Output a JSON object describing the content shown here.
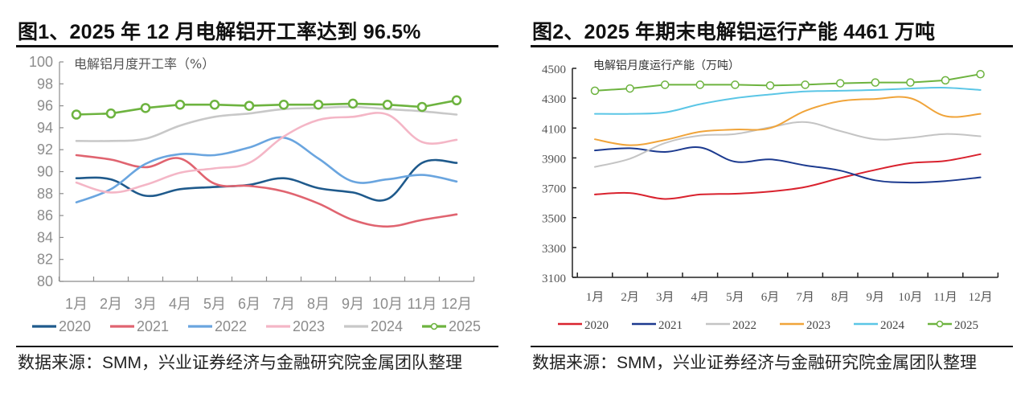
{
  "figures": [
    {
      "title": "图1、2025 年 12 月电解铝开工率达到 96.5%",
      "source": "数据来源：SMM，兴业证券经济与金融研究院金属团队整理"
    },
    {
      "title": "图2、2025 年期末电解铝运行产能 4461 万吨",
      "source": "数据来源：SMM，兴业证券经济与金融研究院金属团队整理"
    }
  ],
  "chart_data": [
    {
      "type": "line",
      "title": "电解铝月度开工率（%）",
      "xlabel": "",
      "ylabel": "",
      "categories": [
        "1月",
        "2月",
        "3月",
        "4月",
        "5月",
        "6月",
        "7月",
        "8月",
        "9月",
        "10月",
        "11月",
        "12月"
      ],
      "ylim": [
        80,
        100
      ],
      "yticks": [
        80,
        82,
        84,
        86,
        88,
        90,
        92,
        94,
        96,
        98,
        100
      ],
      "grid": false,
      "legend": "bottom",
      "series": [
        {
          "name": "2020",
          "color": "#1f5a8c",
          "markers": false,
          "values": [
            89.4,
            89.3,
            87.8,
            88.4,
            88.6,
            88.8,
            89.4,
            88.5,
            88.1,
            87.5,
            90.8,
            90.8
          ]
        },
        {
          "name": "2021",
          "color": "#e06470",
          "markers": false,
          "values": [
            91.5,
            91.1,
            90.4,
            91.2,
            88.9,
            88.7,
            88.2,
            87.1,
            85.6,
            85.0,
            85.6,
            86.1
          ]
        },
        {
          "name": "2022",
          "color": "#6aa5df",
          "markers": false,
          "values": [
            87.2,
            88.4,
            90.7,
            91.6,
            91.5,
            92.2,
            93.1,
            91.2,
            89.1,
            89.3,
            89.7,
            89.1
          ]
        },
        {
          "name": "2023",
          "color": "#f4b6c6",
          "markers": false,
          "values": [
            89.0,
            88.1,
            88.8,
            89.9,
            90.3,
            90.8,
            93.2,
            94.7,
            95.0,
            95.2,
            92.7,
            92.9
          ]
        },
        {
          "name": "2024",
          "color": "#c8c8c8",
          "markers": false,
          "values": [
            92.8,
            92.8,
            93.0,
            94.2,
            95.0,
            95.3,
            95.7,
            95.8,
            95.9,
            95.7,
            95.5,
            95.2
          ]
        },
        {
          "name": "2025",
          "color": "#6db33f",
          "markers": true,
          "values": [
            95.2,
            95.3,
            95.8,
            96.1,
            96.1,
            96.0,
            96.1,
            96.1,
            96.2,
            96.1,
            95.9,
            96.5
          ]
        }
      ]
    },
    {
      "type": "line",
      "title": "电解铝月度运行产能（万吨）",
      "xlabel": "",
      "ylabel": "",
      "categories": [
        "1月",
        "2月",
        "3月",
        "4月",
        "5月",
        "6月",
        "7月",
        "8月",
        "9月",
        "10月",
        "11月",
        "12月"
      ],
      "ylim": [
        3100,
        4500
      ],
      "yticks": [
        3100,
        3300,
        3500,
        3700,
        3900,
        4100,
        4300,
        4500
      ],
      "grid": false,
      "legend": "bottom",
      "series": [
        {
          "name": "2020",
          "color": "#d9222e",
          "markers": false,
          "values": [
            3655,
            3665,
            3625,
            3655,
            3660,
            3675,
            3705,
            3765,
            3820,
            3865,
            3880,
            3925
          ]
        },
        {
          "name": "2021",
          "color": "#1c3a8f",
          "markers": false,
          "values": [
            3950,
            3965,
            3940,
            3970,
            3875,
            3890,
            3850,
            3815,
            3750,
            3735,
            3745,
            3770
          ]
        },
        {
          "name": "2022",
          "color": "#c4c4c4",
          "markers": false,
          "values": [
            3840,
            3895,
            4000,
            4050,
            4060,
            4105,
            4140,
            4080,
            4025,
            4035,
            4060,
            4045
          ]
        },
        {
          "name": "2023",
          "color": "#f0a43a",
          "markers": false,
          "values": [
            4025,
            3985,
            4020,
            4075,
            4090,
            4100,
            4215,
            4280,
            4295,
            4300,
            4180,
            4195
          ]
        },
        {
          "name": "2024",
          "color": "#5bc6e6",
          "markers": false,
          "values": [
            4195,
            4195,
            4205,
            4260,
            4300,
            4325,
            4345,
            4350,
            4355,
            4365,
            4370,
            4355
          ]
        },
        {
          "name": "2025",
          "color": "#6db33f",
          "markers": true,
          "values": [
            4350,
            4365,
            4390,
            4390,
            4390,
            4385,
            4390,
            4400,
            4405,
            4405,
            4420,
            4461
          ]
        }
      ]
    }
  ]
}
